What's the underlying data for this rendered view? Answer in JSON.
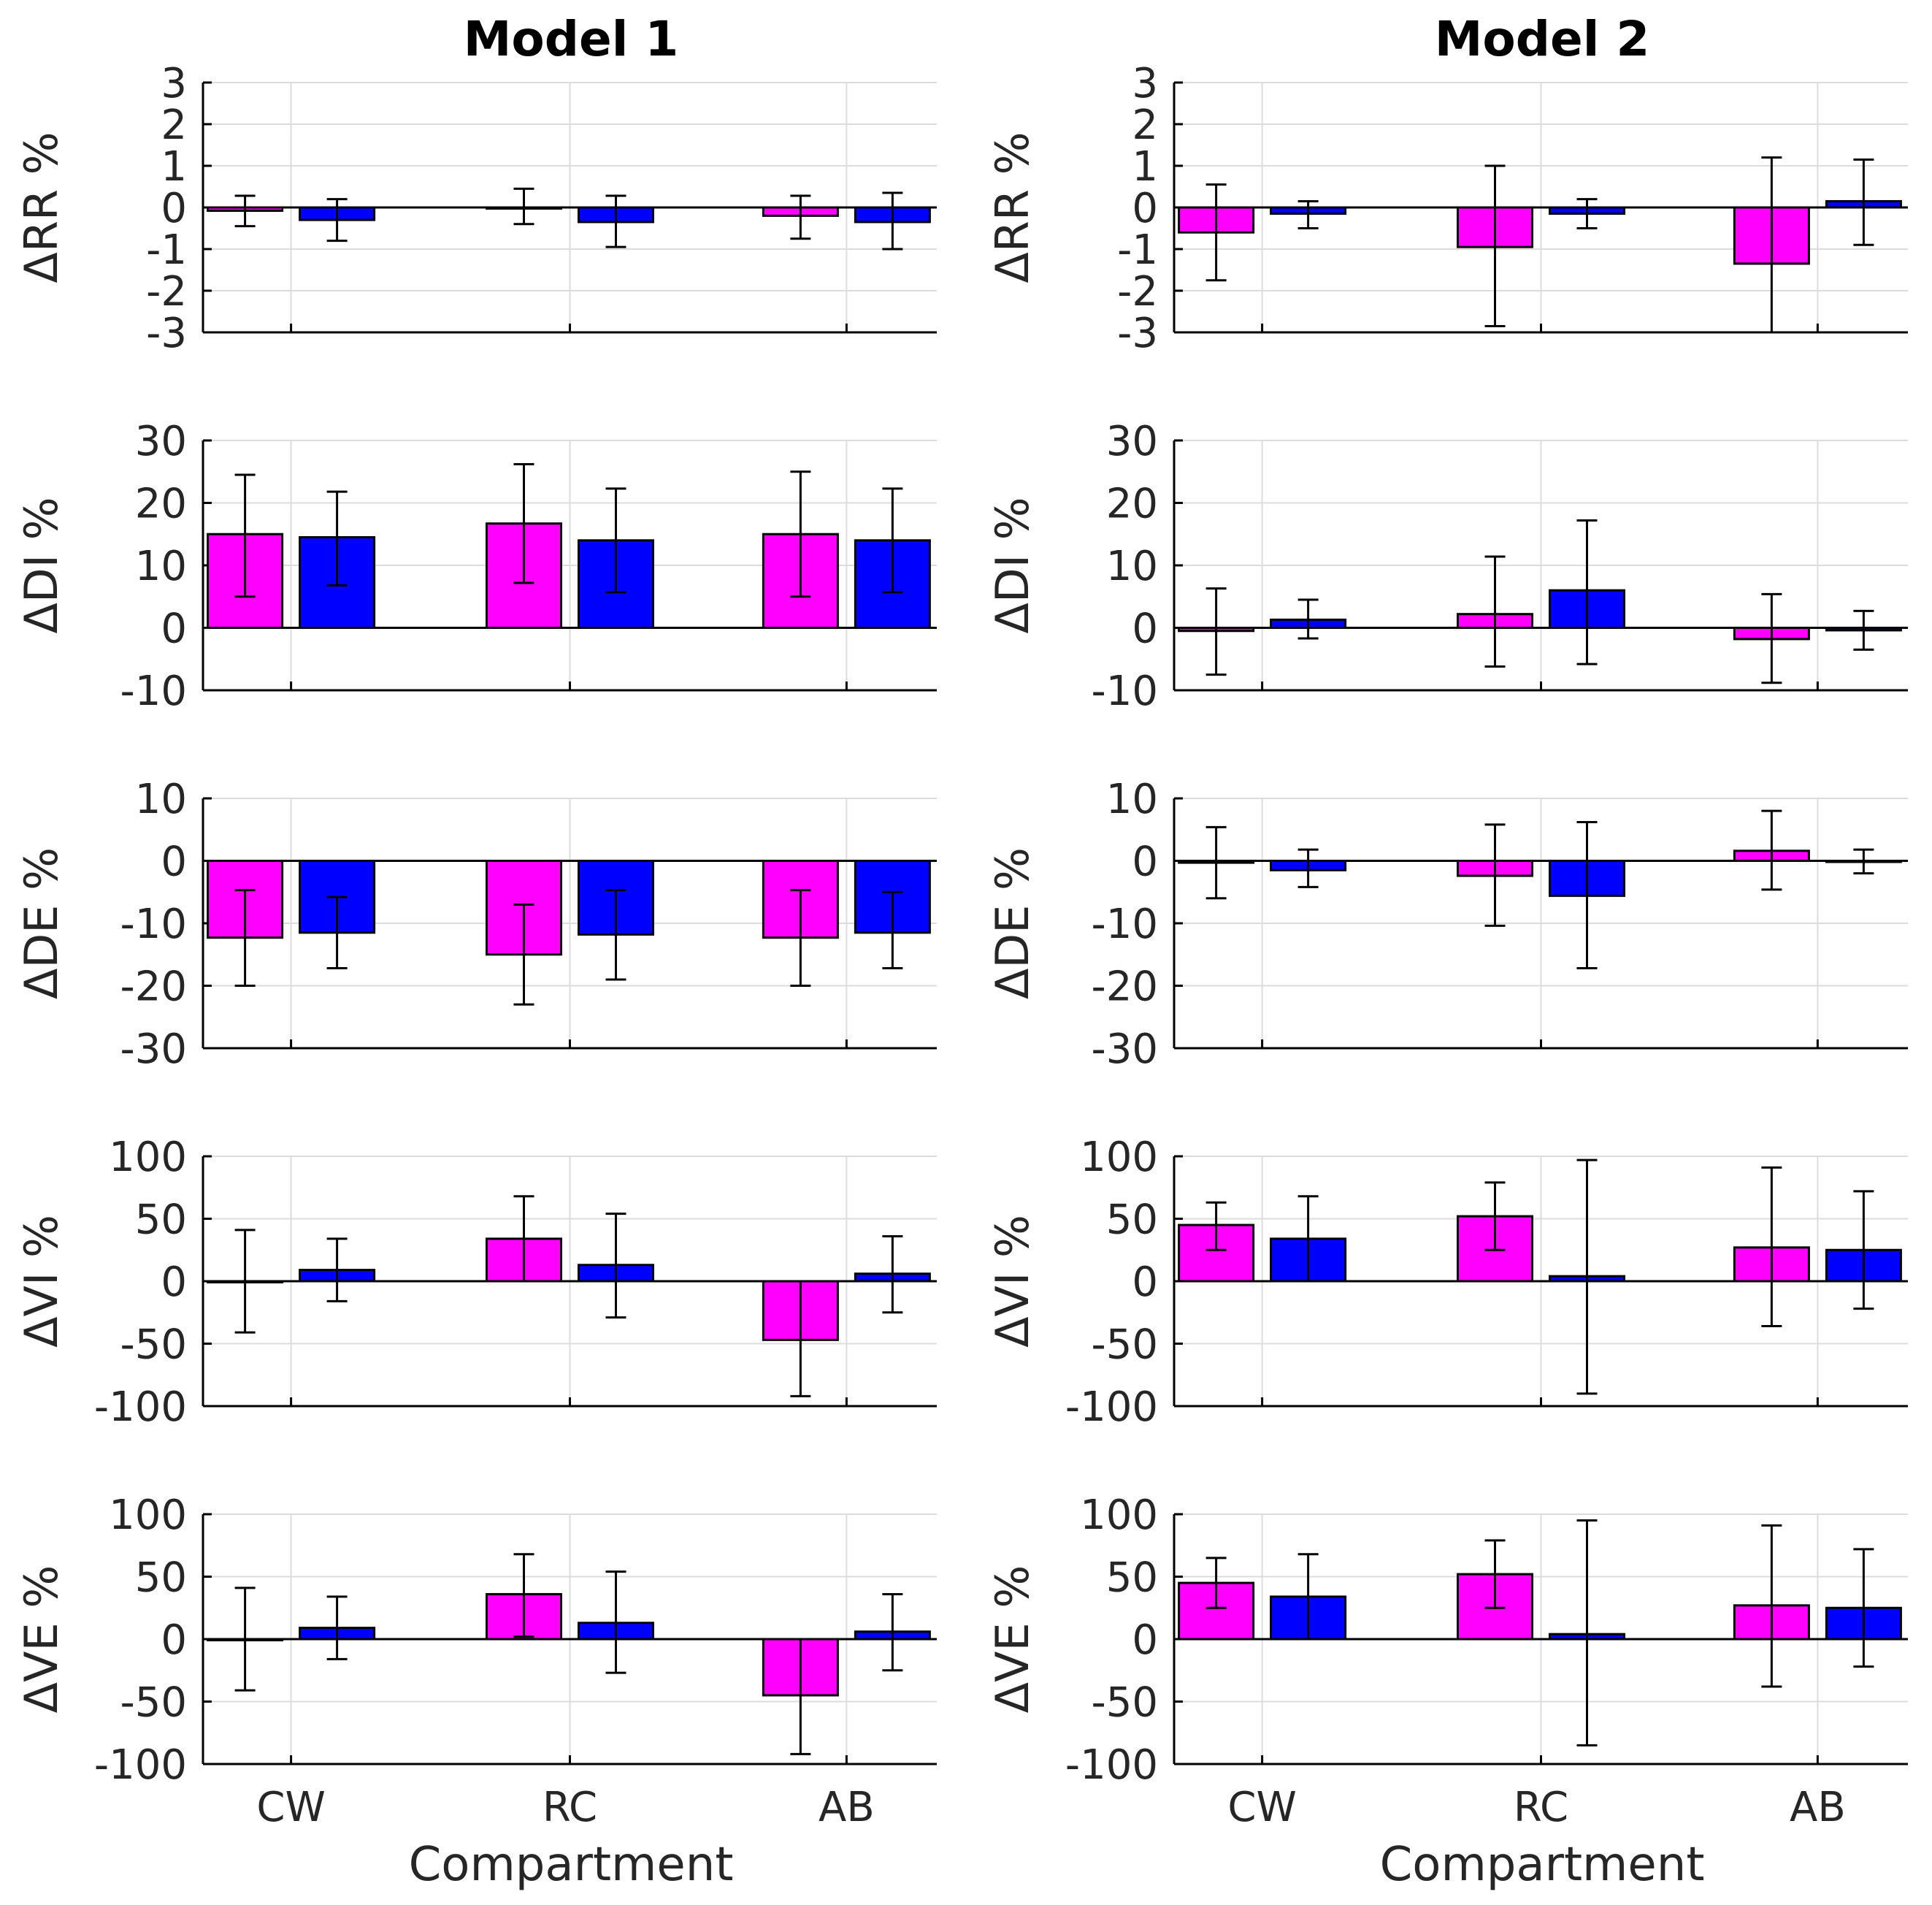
{
  "chart_data": {
    "type": "bar",
    "xlabel": "Compartment",
    "categories": [
      "CW",
      "RC",
      "AB"
    ],
    "series_colors": [
      "#ff00ff",
      "#0000ff"
    ],
    "row_labels": [
      "ΔRR %",
      "ΔDI %",
      "ΔDE %",
      "ΔVI %",
      "ΔVE %"
    ],
    "ylims": [
      [
        -3,
        3
      ],
      [
        -10,
        30
      ],
      [
        -30,
        10
      ],
      [
        -100,
        100
      ],
      [
        -100,
        100
      ]
    ],
    "yticks": [
      [
        -3,
        -2,
        -1,
        0,
        1,
        2,
        3
      ],
      [
        -10,
        0,
        10,
        20,
        30
      ],
      [
        -30,
        -20,
        -10,
        0,
        10
      ],
      [
        -100,
        -50,
        0,
        50,
        100
      ],
      [
        -100,
        -50,
        0,
        50,
        100
      ]
    ],
    "panels": [
      {
        "title": "Model 1",
        "rows": [
          {
            "magenta": [
              [
                -0.08,
                -0.45,
                0.28
              ],
              [
                0.0,
                -0.4,
                0.45
              ],
              [
                -0.2,
                -0.75,
                0.28
              ]
            ],
            "blue": [
              [
                -0.3,
                -0.8,
                0.2
              ],
              [
                -0.35,
                -0.95,
                0.28
              ],
              [
                -0.35,
                -1.0,
                0.35
              ]
            ]
          },
          {
            "magenta": [
              [
                15,
                5,
                24.5
              ],
              [
                16.7,
                7.2,
                26.2
              ],
              [
                15,
                5,
                25
              ]
            ],
            "blue": [
              [
                14.5,
                6.8,
                21.8
              ],
              [
                14,
                5.7,
                22.3
              ],
              [
                14,
                5.7,
                22.3
              ]
            ]
          },
          {
            "magenta": [
              [
                -12.3,
                -20,
                -4.7
              ],
              [
                -15,
                -23,
                -7
              ],
              [
                -12.3,
                -20,
                -4.7
              ]
            ],
            "blue": [
              [
                -11.5,
                -17.2,
                -5.8
              ],
              [
                -11.8,
                -19,
                -4.7
              ],
              [
                -11.5,
                -17.2,
                -5
              ]
            ]
          },
          {
            "magenta": [
              [
                0,
                -41,
                41
              ],
              [
                34,
                0,
                68
              ],
              [
                -47,
                -92,
                0
              ]
            ],
            "blue": [
              [
                9,
                -16,
                34
              ],
              [
                13,
                -29,
                54
              ],
              [
                6,
                -25,
                36
              ]
            ]
          },
          {
            "magenta": [
              [
                0,
                -41,
                41
              ],
              [
                36,
                2,
                68
              ],
              [
                -45,
                -92,
                0
              ]
            ],
            "blue": [
              [
                9,
                -16,
                34
              ],
              [
                13,
                -27,
                54
              ],
              [
                6,
                -25,
                36
              ]
            ]
          }
        ]
      },
      {
        "title": "Model 2",
        "rows": [
          {
            "magenta": [
              [
                -0.6,
                -1.75,
                0.55
              ],
              [
                -0.95,
                -2.85,
                1.0
              ],
              [
                -1.35,
                -3.2,
                1.2
              ]
            ],
            "blue": [
              [
                -0.15,
                -0.5,
                0.15
              ],
              [
                -0.15,
                -0.5,
                0.2
              ],
              [
                0.15,
                -0.9,
                1.15
              ]
            ]
          },
          {
            "magenta": [
              [
                -0.5,
                -7.5,
                6.3
              ],
              [
                2.2,
                -6.2,
                11.4
              ],
              [
                -1.8,
                -8.8,
                5.4
              ]
            ],
            "blue": [
              [
                1.3,
                -1.7,
                4.5
              ],
              [
                6,
                -5.8,
                17.2
              ],
              [
                -0.4,
                -3.5,
                2.7
              ]
            ]
          },
          {
            "magenta": [
              [
                -0.3,
                -6,
                5.4
              ],
              [
                -2.4,
                -10.4,
                5.8
              ],
              [
                1.6,
                -4.6,
                8
              ]
            ],
            "blue": [
              [
                -1.5,
                -4.2,
                1.8
              ],
              [
                -5.6,
                -17.2,
                6.2
              ],
              [
                0,
                -2,
                1.8
              ]
            ]
          },
          {
            "magenta": [
              [
                45,
                25,
                63
              ],
              [
                52,
                25,
                79
              ],
              [
                27,
                -36,
                91
              ]
            ],
            "blue": [
              [
                34,
                0,
                68
              ],
              [
                4,
                -90,
                97
              ],
              [
                25,
                -22,
                72
              ]
            ]
          },
          {
            "magenta": [
              [
                45,
                25,
                65
              ],
              [
                52,
                25,
                79
              ],
              [
                27,
                -38,
                91
              ]
            ],
            "blue": [
              [
                34,
                0,
                68
              ],
              [
                4,
                -85,
                95
              ],
              [
                25,
                -22,
                72
              ]
            ]
          }
        ]
      }
    ]
  }
}
